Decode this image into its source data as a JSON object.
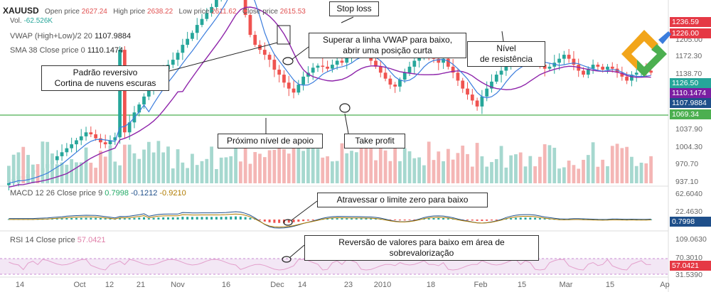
{
  "header": {
    "symbol": "XAUUSD",
    "open_label": "Open price",
    "open_value": "2627.24",
    "high_label": "High price",
    "high_value": "2638.22",
    "low_label": "Low price",
    "low_value": "2611.62",
    "close_label": "Close price",
    "close_value": "2615.53",
    "vol_label": "Vol.",
    "vol_value": "-62.526K"
  },
  "indicators": {
    "vwap_label": "VWAP (High+Low)/2 20",
    "vwap_value": "1107.9884",
    "sma_label": "SMA 38 Close price 0",
    "sma_value": "1110.1474",
    "macd_label": "MACD 12 26 Close price 9",
    "macd_v1": "0.7998",
    "macd_v2": "-0.1212",
    "macd_v3": "-0.9210",
    "rsi_label": "RSI 14 Close price",
    "rsi_value": "57.0421"
  },
  "annotations": {
    "stop_loss": "Stop loss",
    "vwap_break_1": "Superar a linha VWAP para baixo,",
    "vwap_break_2": "abrir uma posição curta",
    "resistance_1": "Nível",
    "resistance_2": "de resistência",
    "pattern_1": "Padrão reversivo",
    "pattern_2": "Cortina de nuvens escuras",
    "support": "Próximo nível de apoio",
    "take_profit": "Take profit",
    "macd_cross": "Atravessar o limite zero para baixo",
    "rsi_reversal": "Reversão de valores para baixo em área de sobrevalorização"
  },
  "price_axis": {
    "labels": [
      "1236.59",
      "1226.00",
      "1205.00",
      "1172.30",
      "1138.70",
      "1126.50",
      "1110.1474",
      "1107.9884",
      "1069.34",
      "1037.90",
      "1004.30",
      "970.70",
      "937.10"
    ],
    "tags": [
      {
        "text": "1236.59",
        "color": "#e53945"
      },
      {
        "text": "1226.00",
        "color": "#e53945"
      },
      {
        "text": "1126.50",
        "color": "#26a69a"
      },
      {
        "text": "1110.1474",
        "color": "#7b1fa2"
      },
      {
        "text": "1107.9884",
        "color": "#1e4f8a"
      },
      {
        "text": "1069.34",
        "color": "#4caf50"
      }
    ]
  },
  "macd_axis": {
    "labels": [
      "62.6040",
      "22.4630"
    ],
    "tag": "0.7998",
    "tag_color": "#1e4f8a"
  },
  "rsi_axis": {
    "labels": [
      "109.0630",
      "70.3010",
      "31.5390"
    ],
    "tag": "57.0421",
    "tag_color": "#e53945"
  },
  "time_axis": [
    "14",
    "Oct",
    "12",
    "21",
    "Nov",
    "16",
    "Dec",
    "14",
    "23",
    "2010",
    "18",
    "Feb",
    "15",
    "Mar",
    "15",
    "Ap"
  ],
  "colors": {
    "up": "#26a69a",
    "down": "#ef5350",
    "vwap": "#3b7ddd",
    "sma": "#8e24aa",
    "resistance": "#e53945",
    "support": "#4caf50"
  },
  "logo": {
    "name": "litefinance-logo"
  },
  "chart_data": {
    "type": "candlestick",
    "symbol": "XAUUSD",
    "levels": {
      "resistance": 1226.0,
      "support": 1069.34
    },
    "close_estimates": [
      1003,
      1005,
      1008,
      1006,
      1010,
      1014,
      1012,
      1016,
      1020,
      1024,
      1028,
      1032,
      1036,
      1040,
      1044,
      1048,
      1052,
      1050,
      1046,
      1042,
      1040,
      1044,
      1047,
      1135,
      1052,
      1062,
      1072,
      1080,
      1088,
      1094,
      1100,
      1108,
      1115,
      1120,
      1125,
      1132,
      1140,
      1146,
      1152,
      1160,
      1166,
      1172,
      1178,
      1186,
      1195,
      1210,
      1224,
      1228,
      1200,
      1170,
      1150,
      1140,
      1135,
      1130,
      1125,
      1115,
      1110,
      1102,
      1096,
      1092,
      1100,
      1108,
      1112,
      1117,
      1119,
      1118,
      1116,
      1120,
      1124,
      1122,
      1128,
      1132,
      1137,
      1135,
      1130,
      1124,
      1118,
      1112,
      1106,
      1100,
      1098,
      1105,
      1112,
      1118,
      1124,
      1128,
      1132,
      1130,
      1126,
      1122,
      1126,
      1118,
      1112,
      1104,
      1096,
      1090,
      1084,
      1078,
      1088,
      1096,
      1103,
      1110,
      1114,
      1118,
      1122,
      1126,
      1124,
      1128,
      1133,
      1126,
      1120,
      1116,
      1118,
      1122,
      1126,
      1130,
      1126,
      1120,
      1114,
      1110,
      1116,
      1120,
      1118,
      1115,
      1118,
      1116,
      1112,
      1108,
      1104,
      1110,
      1112,
      1115,
      1114,
      1112
    ],
    "indicators": [
      "VWAP (High+Low)/2 20",
      "SMA 38 Close price",
      "MACD 12 26 Close price 9",
      "RSI 14 Close price"
    ]
  }
}
